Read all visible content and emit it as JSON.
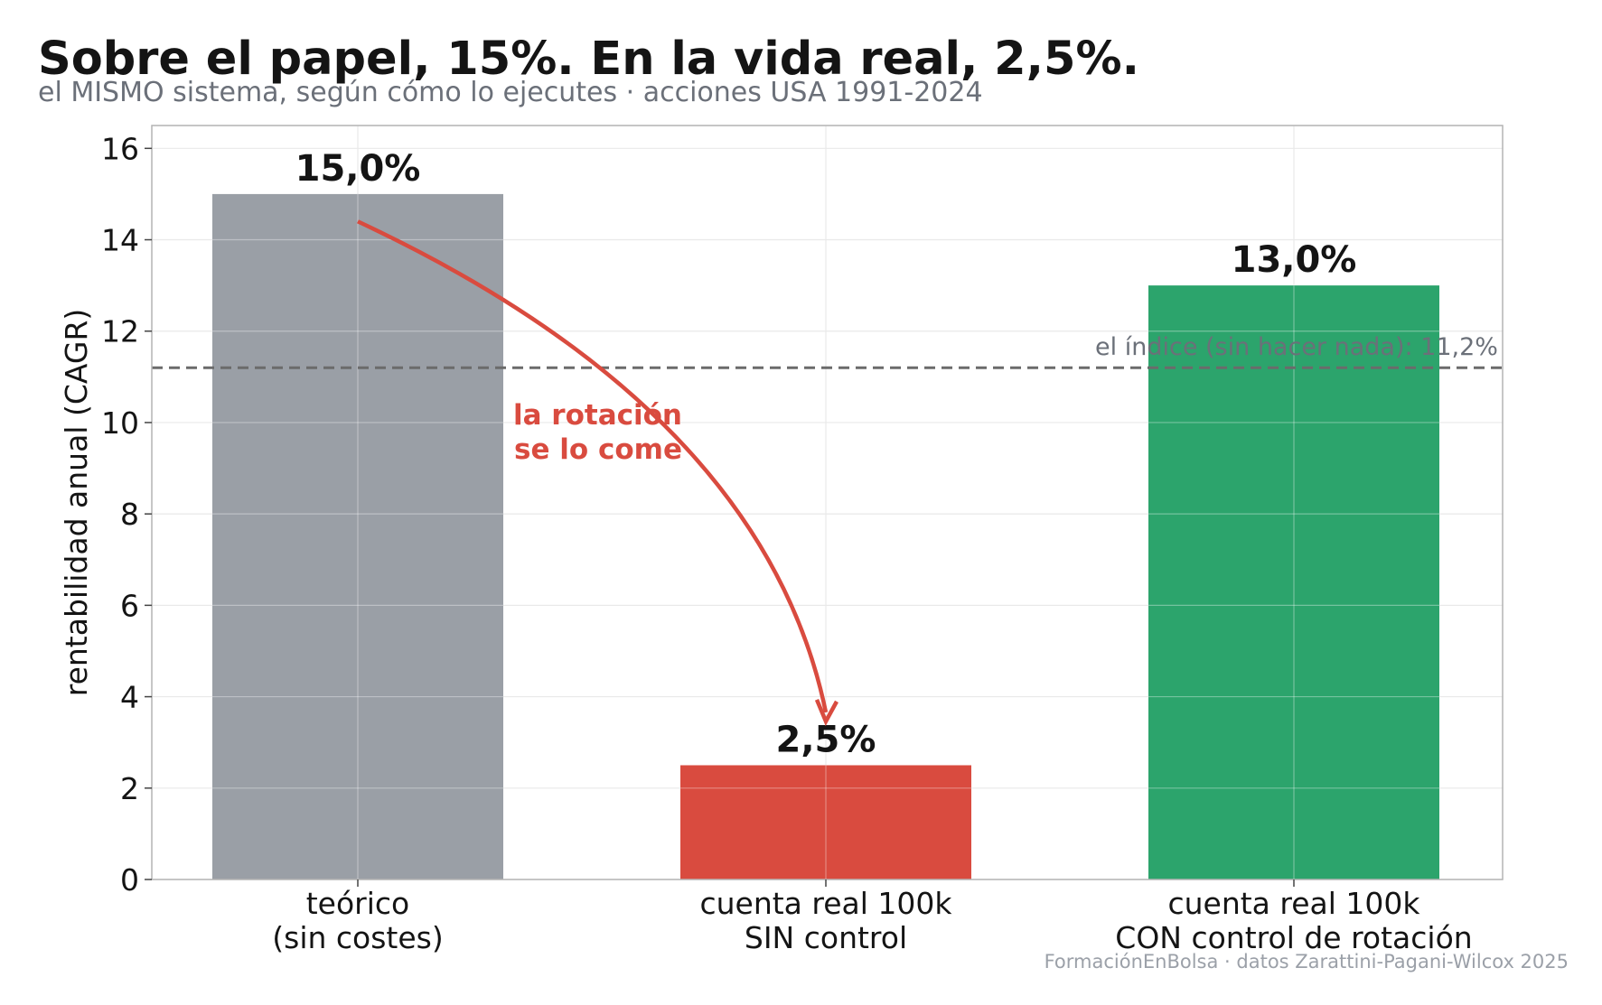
{
  "title": "Sobre el papel, 15%. En la vida real, 2,5%.",
  "subtitle": "el MISMO sistema, según cómo lo ejecutes · acciones USA 1991-2024",
  "source": "FormaciónEnBolsa · datos Zarattini-Pagani-Wilcox 2025",
  "colors": {
    "teorico": "#9a9fa6",
    "sin_control": "#d94b3f",
    "con_control": "#2ca46c",
    "reference_line": "#6b6b6b",
    "annotation": "#d94b3f"
  },
  "chart_data": {
    "type": "bar",
    "title": "Sobre el papel, 15%. En la vida real, 2,5%.",
    "subtitle": "el MISMO sistema, según cómo lo ejecutes · acciones USA 1991-2024",
    "xlabel": "",
    "ylabel": "rentabilidad anual (CAGR)",
    "ylim": [
      0,
      16.5
    ],
    "yticks": [
      0,
      2,
      4,
      6,
      8,
      10,
      12,
      14,
      16
    ],
    "grid": true,
    "categories": [
      "teórico\n(sin costes)",
      "cuenta real 100k\nSIN control",
      "cuenta real 100k\nCON control de rotación"
    ],
    "values": [
      15.0,
      2.5,
      13.0
    ],
    "data_labels": [
      "15,0%",
      "2,5%",
      "13,0%"
    ],
    "bar_colors": [
      "#9a9fa6",
      "#d94b3f",
      "#2ca46c"
    ],
    "reference_line": {
      "value": 11.2,
      "label": "el índice (sin hacer nada): 11,2%",
      "style": "dashed"
    },
    "annotation": {
      "text": [
        "la rotación",
        "se lo come"
      ],
      "arrow_from": {
        "category_index": 0,
        "value": 14.4
      },
      "arrow_to": {
        "category_index": 1,
        "value": 3.5
      }
    }
  }
}
